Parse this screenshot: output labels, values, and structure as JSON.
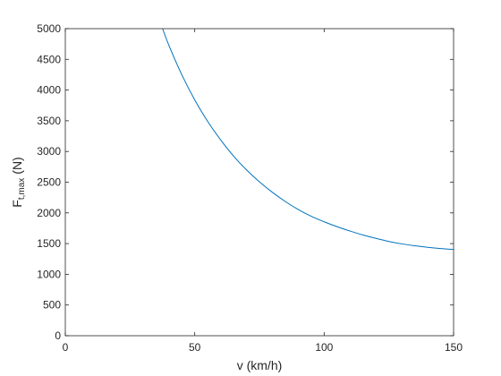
{
  "chart_data": {
    "type": "line",
    "title": "",
    "xlabel": "v (km/h)",
    "ylabel_main": "F",
    "ylabel_subscript": "t,max",
    "ylabel_unit": "(N)",
    "xlim": [
      0,
      150
    ],
    "ylim": [
      0,
      5000
    ],
    "xticks": [
      0,
      50,
      100,
      150
    ],
    "yticks": [
      0,
      500,
      1000,
      1500,
      2000,
      2500,
      3000,
      3500,
      4000,
      4500,
      5000
    ],
    "grid": false,
    "series": [
      {
        "color": "#0072BD",
        "x": [
          37.6,
          40,
          45,
          50,
          55,
          60,
          65,
          70,
          75,
          80,
          85,
          90,
          95,
          100,
          105,
          110,
          115,
          120,
          125,
          130,
          135,
          140,
          145,
          150
        ],
        "y": [
          5000,
          4730,
          4250,
          3840,
          3490,
          3190,
          2925,
          2700,
          2505,
          2335,
          2185,
          2055,
          1945,
          1855,
          1775,
          1705,
          1640,
          1585,
          1535,
          1495,
          1465,
          1440,
          1420,
          1405
        ]
      }
    ]
  }
}
